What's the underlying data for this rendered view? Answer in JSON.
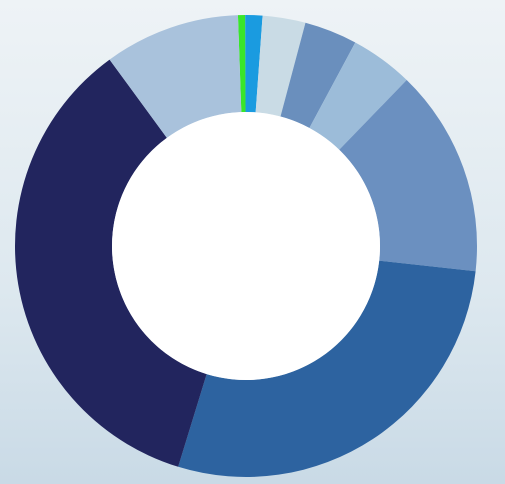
{
  "chart_data": {
    "type": "donut",
    "categories": [
      null,
      null,
      null,
      null,
      null,
      null,
      null,
      null,
      null
    ],
    "values": [
      0.5,
      1.2,
      3,
      3.7,
      4.4,
      14.5,
      28,
      35.2,
      9.5
    ],
    "colors": [
      "#39e62a",
      "#1a9be0",
      "#c9dbe5",
      "#6a8fbd",
      "#9cbcd9",
      "#6b90c0",
      "#2d63a0",
      "#22255e",
      "#a9c2dc"
    ]
  }
}
